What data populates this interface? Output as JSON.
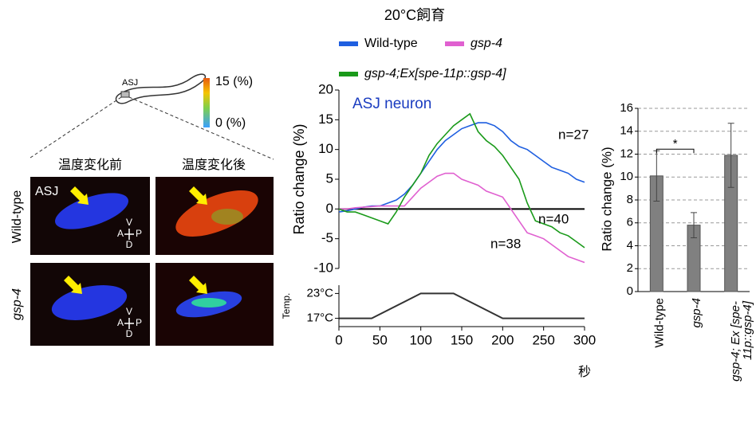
{
  "micrographs": {
    "worm_label": "ASJ",
    "colorbar": {
      "max_label": "15 (%)",
      "min_label": "0 (%)"
    },
    "columns": [
      "温度変化前",
      "温度変化後"
    ],
    "rows": [
      "Wild-type",
      "gsp-4"
    ],
    "neuron_label": "ASJ",
    "axis_labels": {
      "v": "V",
      "a": "A",
      "p": "P",
      "d": "D"
    }
  },
  "chart_data": [
    {
      "type": "line",
      "title": "20°C飼育",
      "annotation": "ASJ neuron",
      "ylabel": "Ratio change (%)",
      "xlim": [
        0,
        300
      ],
      "ylim": [
        -10,
        20
      ],
      "yticks": [
        -10,
        -5,
        0,
        5,
        10,
        15,
        20
      ],
      "x": [
        0,
        10,
        20,
        30,
        40,
        50,
        60,
        70,
        80,
        90,
        100,
        110,
        120,
        130,
        140,
        150,
        160,
        170,
        180,
        190,
        200,
        210,
        220,
        230,
        240,
        250,
        260,
        270,
        280,
        290,
        300
      ],
      "series": [
        {
          "name": "Wild-type",
          "color": "#1f5fe0",
          "count_label": "n=27",
          "values": [
            -0.5,
            -0.3,
            0,
            0.3,
            0.5,
            0.5,
            1,
            1.5,
            2.5,
            4,
            6,
            8,
            10,
            11.5,
            12.5,
            13.5,
            14,
            14.5,
            14.5,
            14,
            13,
            11.5,
            10.5,
            10,
            9,
            8,
            7,
            6.5,
            6,
            5,
            4.5
          ]
        },
        {
          "name": "gsp-4",
          "color": "#e060d0",
          "count_label": "n=40",
          "values": [
            0,
            0,
            0.2,
            0.3,
            0.4,
            0.5,
            0.5,
            0.5,
            0.5,
            2,
            3.5,
            4.5,
            5.5,
            6,
            6,
            5,
            4.5,
            4,
            3,
            2.5,
            2,
            0,
            -2,
            -4,
            -4.5,
            -5,
            -6,
            -7,
            -8,
            -8.5,
            -9
          ]
        },
        {
          "name": "gsp-4;Ex[spe-11p::gsp-4]",
          "color": "#1a9a1a",
          "count_label": "n=38",
          "values": [
            0,
            -0.5,
            -0.5,
            -1,
            -1.5,
            -2,
            -2.5,
            -0.5,
            2,
            4,
            6,
            9,
            11,
            12.5,
            14,
            15,
            16,
            13,
            11.5,
            10.5,
            9,
            7,
            5,
            1,
            -2,
            -2.5,
            -3,
            -4,
            -4.5,
            -5.5,
            -6.5
          ]
        }
      ]
    },
    {
      "type": "line",
      "ylabel": "Temp.",
      "xlabel": "秒",
      "xlim": [
        0,
        300
      ],
      "ylim": [
        15,
        25
      ],
      "xticks": [
        0,
        50,
        100,
        150,
        200,
        250,
        300
      ],
      "yticks": [
        {
          "value": 17,
          "label": "17°C"
        },
        {
          "value": 23,
          "label": "23°C"
        }
      ],
      "x": [
        0,
        40,
        100,
        140,
        200,
        300
      ],
      "series": [
        {
          "color": "#333333",
          "values": [
            17,
            17,
            23,
            23,
            17,
            17
          ]
        }
      ]
    },
    {
      "type": "bar",
      "ylabel": "Ratio change (%)",
      "ylim": [
        0,
        16
      ],
      "yticks": [
        0,
        2,
        4,
        6,
        8,
        10,
        12,
        14,
        16
      ],
      "grid": true,
      "categories": [
        "Wild-type",
        "gsp-4",
        "gsp-4; Ex [spe-11p::gsp-4]"
      ],
      "color": "#808080",
      "values": [
        10.1,
        5.8,
        11.9
      ],
      "errors": [
        2.2,
        1.1,
        2.8
      ],
      "annotation": "*"
    }
  ]
}
